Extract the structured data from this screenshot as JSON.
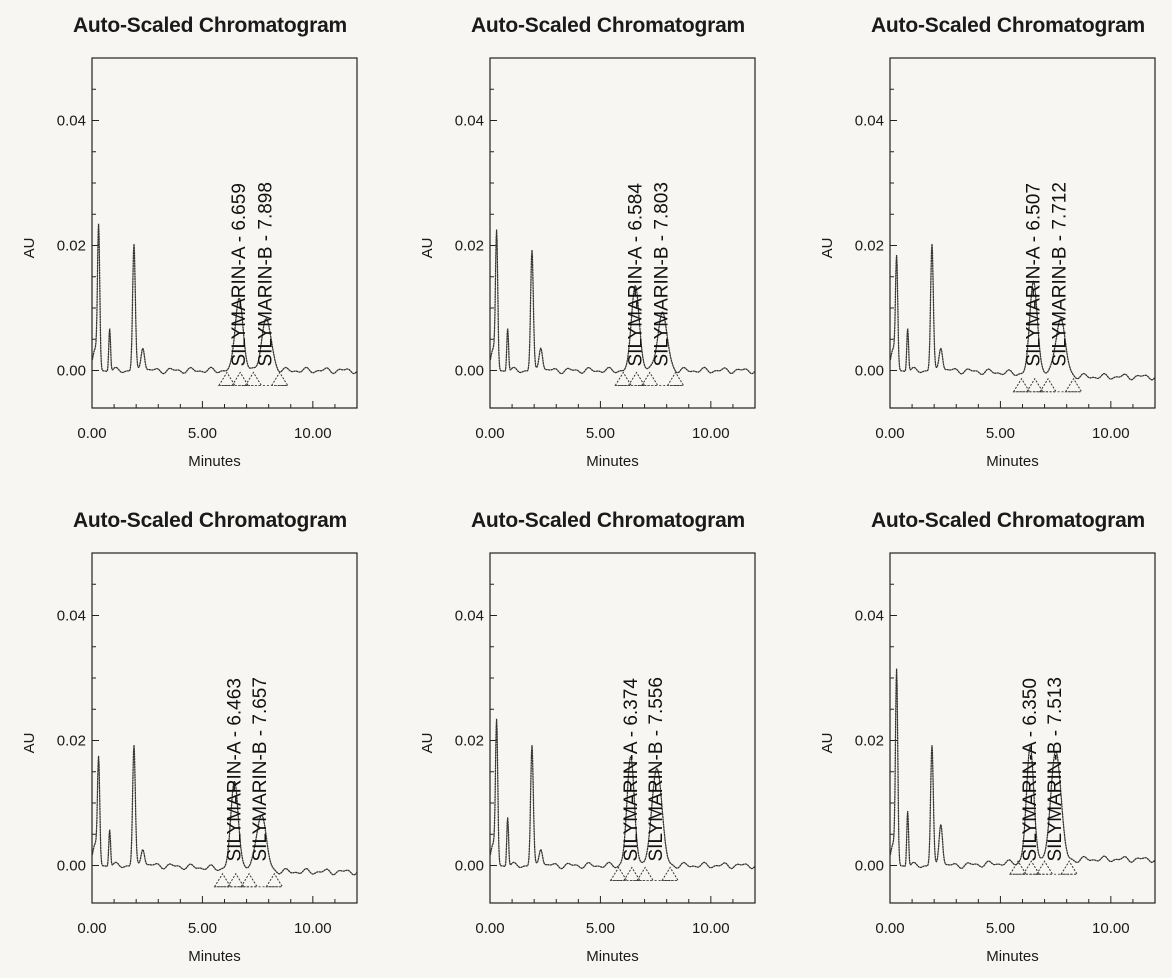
{
  "chart_data": [
    {
      "type": "line",
      "title": "Auto-Scaled Chromatogram",
      "xlabel": "Minutes",
      "ylabel": "AU",
      "xlim": [
        0,
        12
      ],
      "ylim": [
        -0.006,
        0.05
      ],
      "x_ticks": [
        0,
        5,
        10
      ],
      "x_tick_labels": [
        "0.00",
        "5.00",
        "10.00"
      ],
      "y_ticks": [
        0,
        0.02,
        0.04
      ],
      "y_tick_labels": [
        "0.00",
        "0.02",
        "0.04"
      ],
      "trace": [
        [
          0.05,
          0.001
        ],
        [
          0.3,
          0.022
        ],
        [
          0.5,
          0.003
        ],
        [
          0.8,
          0.007
        ],
        [
          1.1,
          0.001
        ],
        [
          1.9,
          0.02
        ],
        [
          2.3,
          0.004
        ],
        [
          6.659,
          0.012
        ],
        [
          7.898,
          0.008
        ],
        [
          8.5,
          0.0
        ],
        [
          12,
          0.0
        ]
      ],
      "peaks": [
        {
          "name": "SILYMARIN-A",
          "rt": 6.659,
          "label": "SILYMARIN-A - 6.659"
        },
        {
          "name": "SILYMARIN-B",
          "rt": 7.898,
          "label": "SILYMARIN-B - 7.898"
        }
      ]
    },
    {
      "type": "line",
      "title": "Auto-Scaled Chromatogram",
      "xlabel": "Minutes",
      "ylabel": "AU",
      "xlim": [
        0,
        12
      ],
      "ylim": [
        -0.006,
        0.05
      ],
      "x_ticks": [
        0,
        5,
        10
      ],
      "x_tick_labels": [
        "0.00",
        "5.00",
        "10.00"
      ],
      "y_ticks": [
        0,
        0.02,
        0.04
      ],
      "y_tick_labels": [
        "0.00",
        "0.02",
        "0.04"
      ],
      "trace": [
        [
          0.05,
          0.002
        ],
        [
          0.3,
          0.021
        ],
        [
          0.5,
          0.002
        ],
        [
          0.8,
          0.007
        ],
        [
          1.1,
          0.001
        ],
        [
          1.9,
          0.019
        ],
        [
          2.3,
          0.004
        ],
        [
          6.584,
          0.014
        ],
        [
          7.803,
          0.009
        ],
        [
          8.5,
          0.0
        ],
        [
          12,
          0.0
        ]
      ],
      "peaks": [
        {
          "name": "SILYMARIN-A",
          "rt": 6.584,
          "label": "SILYMARIN-A - 6.584"
        },
        {
          "name": "SILYMARIN-B",
          "rt": 7.803,
          "label": "SILYMARIN-B - 7.803"
        }
      ]
    },
    {
      "type": "line",
      "title": "Auto-Scaled Chromatogram",
      "xlabel": "Minutes",
      "ylabel": "AU",
      "xlim": [
        0,
        12
      ],
      "ylim": [
        -0.006,
        0.05
      ],
      "x_ticks": [
        0,
        5,
        10
      ],
      "x_tick_labels": [
        "0.00",
        "5.00",
        "10.00"
      ],
      "y_ticks": [
        0,
        0.02,
        0.04
      ],
      "y_tick_labels": [
        "0.00",
        "0.02",
        "0.04"
      ],
      "trace": [
        [
          0.05,
          0.002
        ],
        [
          0.3,
          0.017
        ],
        [
          0.5,
          0.002
        ],
        [
          0.8,
          0.007
        ],
        [
          1.1,
          0.001
        ],
        [
          1.9,
          0.02
        ],
        [
          2.3,
          0.004
        ],
        [
          6.507,
          0.015
        ],
        [
          7.712,
          0.009
        ],
        [
          8.5,
          -0.001
        ],
        [
          12,
          -0.001
        ]
      ],
      "peaks": [
        {
          "name": "SILYMARIN-A",
          "rt": 6.507,
          "label": "SILYMARIN-A - 6.507"
        },
        {
          "name": "SILYMARIN-B",
          "rt": 7.712,
          "label": "SILYMARIN-B - 7.712"
        }
      ]
    },
    {
      "type": "line",
      "title": "Auto-Scaled Chromatogram",
      "xlabel": "Minutes",
      "ylabel": "AU",
      "xlim": [
        0,
        12
      ],
      "ylim": [
        -0.006,
        0.05
      ],
      "x_ticks": [
        0,
        5,
        10
      ],
      "x_tick_labels": [
        "0.00",
        "5.00",
        "10.00"
      ],
      "y_ticks": [
        0,
        0.02,
        0.04
      ],
      "y_tick_labels": [
        "0.00",
        "0.02",
        "0.04"
      ],
      "trace": [
        [
          0.05,
          0.001
        ],
        [
          0.3,
          0.016
        ],
        [
          0.5,
          0.001
        ],
        [
          0.8,
          0.006
        ],
        [
          1.1,
          0.0
        ],
        [
          1.9,
          0.019
        ],
        [
          2.3,
          0.003
        ],
        [
          6.463,
          0.014
        ],
        [
          7.657,
          0.009
        ],
        [
          8.5,
          -0.001
        ],
        [
          12,
          -0.001
        ]
      ],
      "peaks": [
        {
          "name": "SILYMARIN-A",
          "rt": 6.463,
          "label": "SILYMARIN-A - 6.463"
        },
        {
          "name": "SILYMARIN-B",
          "rt": 7.657,
          "label": "SILYMARIN-B - 7.657"
        }
      ]
    },
    {
      "type": "line",
      "title": "Auto-Scaled Chromatogram",
      "xlabel": "Minutes",
      "ylabel": "AU",
      "xlim": [
        0,
        12
      ],
      "ylim": [
        -0.006,
        0.05
      ],
      "x_ticks": [
        0,
        5,
        10
      ],
      "x_tick_labels": [
        "0.00",
        "5.00",
        "10.00"
      ],
      "y_ticks": [
        0,
        0.02,
        0.04
      ],
      "y_tick_labels": [
        "0.00",
        "0.02",
        "0.04"
      ],
      "trace": [
        [
          0.05,
          0.001
        ],
        [
          0.3,
          0.022
        ],
        [
          0.5,
          0.002
        ],
        [
          0.8,
          0.008
        ],
        [
          1.1,
          0.001
        ],
        [
          1.9,
          0.019
        ],
        [
          2.3,
          0.003
        ],
        [
          6.374,
          0.017
        ],
        [
          7.556,
          0.016
        ],
        [
          8.5,
          0.0
        ],
        [
          12,
          0.0
        ]
      ],
      "peaks": [
        {
          "name": "SILYMARIN-A",
          "rt": 6.374,
          "label": "SILYMARIN-A - 6.374"
        },
        {
          "name": "SILYMARIN-B",
          "rt": 7.556,
          "label": "SILYMARIN-B - 7.556"
        }
      ]
    },
    {
      "type": "line",
      "title": "Auto-Scaled Chromatogram",
      "xlabel": "Minutes",
      "ylabel": "AU",
      "xlim": [
        0,
        12
      ],
      "ylim": [
        -0.006,
        0.05
      ],
      "x_ticks": [
        0,
        5,
        10
      ],
      "x_tick_labels": [
        "0.00",
        "5.00",
        "10.00"
      ],
      "y_ticks": [
        0,
        0.02,
        0.04
      ],
      "y_tick_labels": [
        "0.00",
        "0.02",
        "0.04"
      ],
      "trace": [
        [
          0.05,
          0.001
        ],
        [
          0.3,
          0.03
        ],
        [
          0.5,
          0.002
        ],
        [
          0.8,
          0.009
        ],
        [
          1.1,
          0.001
        ],
        [
          1.9,
          0.019
        ],
        [
          2.3,
          0.007
        ],
        [
          6.35,
          0.018
        ],
        [
          7.513,
          0.018
        ],
        [
          8.5,
          0.0
        ],
        [
          12,
          0.001
        ]
      ],
      "peaks": [
        {
          "name": "SILYMARIN-A",
          "rt": 6.35,
          "label": "SILYMARIN-A - 6.350"
        },
        {
          "name": "SILYMARIN-B",
          "rt": 7.513,
          "label": "SILYMARIN-B - 7.513"
        }
      ]
    }
  ]
}
